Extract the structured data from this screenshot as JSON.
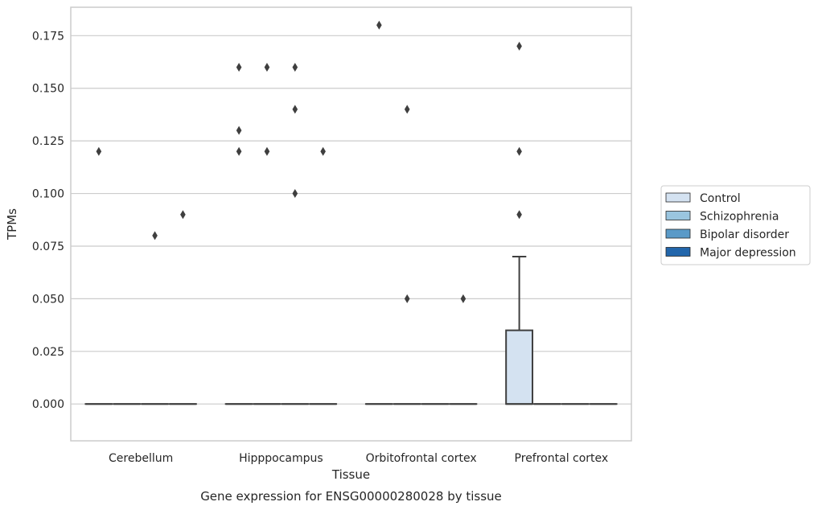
{
  "caption": "Gene expression for ENSG00000280028 by tissue",
  "chart_data": {
    "type": "box",
    "xlabel": "Tissue",
    "ylabel": "TPMs",
    "ylim": [
      -0.0175,
      0.1885
    ],
    "yticks": [
      0.0,
      0.025,
      0.05,
      0.075,
      0.1,
      0.125,
      0.15,
      0.175
    ],
    "ytick_labels": [
      "0.000",
      "0.025",
      "0.050",
      "0.075",
      "0.100",
      "0.125",
      "0.150",
      "0.175"
    ],
    "grid": "horizontal",
    "legend_position": "right",
    "categories": [
      "Cerebellum",
      "Hipppocampus",
      "Orbitofrontal cortex",
      "Prefrontal cortex"
    ],
    "series": [
      {
        "name": "Control",
        "color": "#d4e2f1",
        "boxes": [
          {
            "q1": 0,
            "median": 0,
            "q3": 0,
            "whisker_low": 0,
            "whisker_high": 0,
            "outliers": [
              0.12
            ]
          },
          {
            "q1": 0,
            "median": 0,
            "q3": 0,
            "whisker_low": 0,
            "whisker_high": 0,
            "outliers": [
              0.16,
              0.13,
              0.12
            ]
          },
          {
            "q1": 0,
            "median": 0,
            "q3": 0,
            "whisker_low": 0,
            "whisker_high": 0,
            "outliers": [
              0.18
            ]
          },
          {
            "q1": 0,
            "median": 0,
            "q3": 0.035,
            "whisker_low": 0,
            "whisker_high": 0.07,
            "outliers": [
              0.17,
              0.12,
              0.09
            ]
          }
        ]
      },
      {
        "name": "Schizophrenia",
        "color": "#9ac5df",
        "boxes": [
          {
            "q1": 0,
            "median": 0,
            "q3": 0,
            "whisker_low": 0,
            "whisker_high": 0,
            "outliers": []
          },
          {
            "q1": 0,
            "median": 0,
            "q3": 0,
            "whisker_low": 0,
            "whisker_high": 0,
            "outliers": [
              0.16,
              0.12
            ]
          },
          {
            "q1": 0,
            "median": 0,
            "q3": 0,
            "whisker_low": 0,
            "whisker_high": 0,
            "outliers": [
              0.14,
              0.05
            ]
          },
          {
            "q1": 0,
            "median": 0,
            "q3": 0,
            "whisker_low": 0,
            "whisker_high": 0,
            "outliers": []
          }
        ]
      },
      {
        "name": "Bipolar disorder",
        "color": "#5a9ac8",
        "boxes": [
          {
            "q1": 0,
            "median": 0,
            "q3": 0,
            "whisker_low": 0,
            "whisker_high": 0,
            "outliers": [
              0.08
            ]
          },
          {
            "q1": 0,
            "median": 0,
            "q3": 0,
            "whisker_low": 0,
            "whisker_high": 0,
            "outliers": [
              0.16,
              0.14,
              0.1
            ]
          },
          {
            "q1": 0,
            "median": 0,
            "q3": 0,
            "whisker_low": 0,
            "whisker_high": 0,
            "outliers": []
          },
          {
            "q1": 0,
            "median": 0,
            "q3": 0,
            "whisker_low": 0,
            "whisker_high": 0,
            "outliers": []
          }
        ]
      },
      {
        "name": "Major depression",
        "color": "#2266ab",
        "boxes": [
          {
            "q1": 0,
            "median": 0,
            "q3": 0,
            "whisker_low": 0,
            "whisker_high": 0,
            "outliers": [
              0.09
            ]
          },
          {
            "q1": 0,
            "median": 0,
            "q3": 0,
            "whisker_low": 0,
            "whisker_high": 0,
            "outliers": [
              0.12
            ]
          },
          {
            "q1": 0,
            "median": 0,
            "q3": 0,
            "whisker_low": 0,
            "whisker_high": 0,
            "outliers": [
              0.05
            ]
          },
          {
            "q1": 0,
            "median": 0,
            "q3": 0,
            "whisker_low": 0,
            "whisker_high": 0,
            "outliers": []
          }
        ]
      }
    ]
  }
}
